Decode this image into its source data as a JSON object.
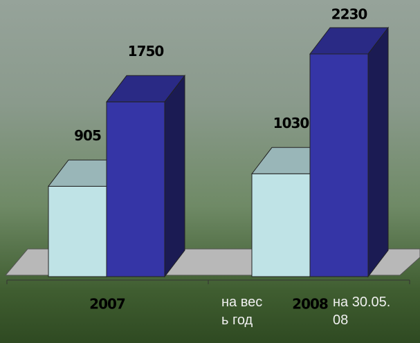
{
  "chart_data": {
    "type": "bar3d",
    "categories": [
      "2007",
      "2008"
    ],
    "series": [
      {
        "name": "на весь год",
        "color": "#bfe3e6",
        "values": [
          905,
          1030
        ]
      },
      {
        "name": "на 30.05.08",
        "color": "#3535a6",
        "values": [
          1750,
          2230
        ]
      }
    ]
  }
}
